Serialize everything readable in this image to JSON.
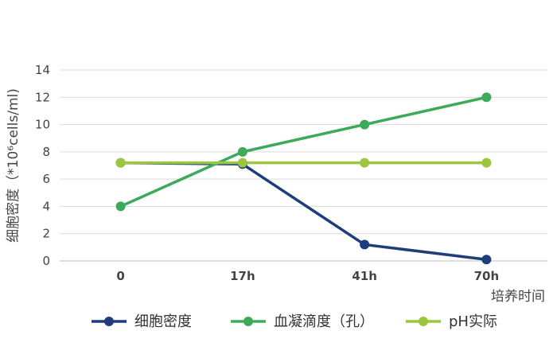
{
  "chart_data": {
    "type": "line",
    "categories": [
      "0",
      "17h",
      "41h",
      "70h"
    ],
    "series": [
      {
        "name": "细胞密度",
        "values": [
          7.2,
          7.1,
          1.2,
          0.1
        ],
        "color": "#1f3d7a"
      },
      {
        "name": "血凝滴度（孔）",
        "values": [
          4,
          8,
          10,
          12
        ],
        "color": "#3daa5a"
      },
      {
        "name": "pH实际",
        "values": [
          7.2,
          7.2,
          7.2,
          7.2
        ],
        "color": "#9dc63f"
      }
    ],
    "ylabel": "细胞密度（*10⁶cells/ml)",
    "xlabel": "培养时间",
    "ylim": [
      0,
      14
    ],
    "yticks": [
      0,
      2,
      4,
      6,
      8,
      10,
      12,
      14
    ],
    "grid": true,
    "legend_position": "bottom"
  }
}
